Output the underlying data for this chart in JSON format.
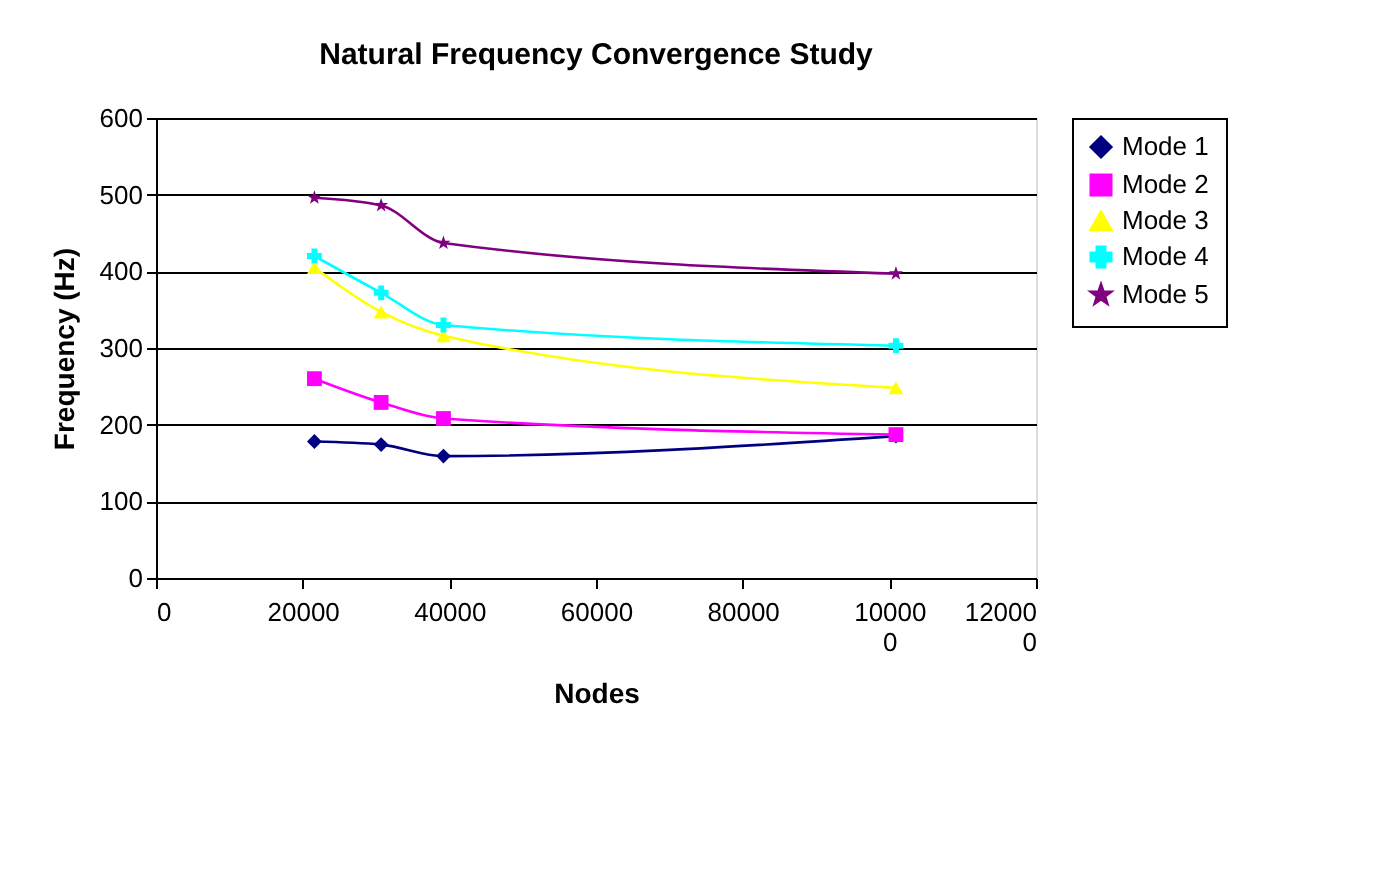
{
  "chart_data": {
    "type": "line",
    "title": "Natural Frequency Convergence Study",
    "xlabel": "Nodes",
    "ylabel": "Frequency (Hz)",
    "x": [
      21600,
      30700,
      39200,
      100900
    ],
    "xlim": [
      0,
      120000
    ],
    "xticks": [
      0,
      20000,
      40000,
      60000,
      80000,
      100000,
      120000
    ],
    "ylim": [
      0,
      600
    ],
    "yticks": [
      0,
      100,
      200,
      300,
      400,
      500,
      600
    ],
    "grid": "y",
    "legend": "right",
    "line_style": "solid",
    "series": [
      {
        "name": "Mode 1",
        "color": "#000080",
        "marker": "diamond",
        "values": [
          178,
          174,
          159,
          185
        ]
      },
      {
        "name": "Mode 2",
        "color": "#ff00ff",
        "marker": "square",
        "values": [
          260,
          229,
          208,
          187
        ]
      },
      {
        "name": "Mode 3",
        "color": "#ffff00",
        "marker": "triangle",
        "values": [
          405,
          347,
          316,
          248
        ]
      },
      {
        "name": "Mode 4",
        "color": "#00ffff",
        "marker": "cross",
        "values": [
          420,
          372,
          330,
          303
        ]
      },
      {
        "name": "Mode 5",
        "color": "#800080",
        "marker": "star",
        "values": [
          496,
          486,
          437,
          397
        ]
      }
    ]
  }
}
